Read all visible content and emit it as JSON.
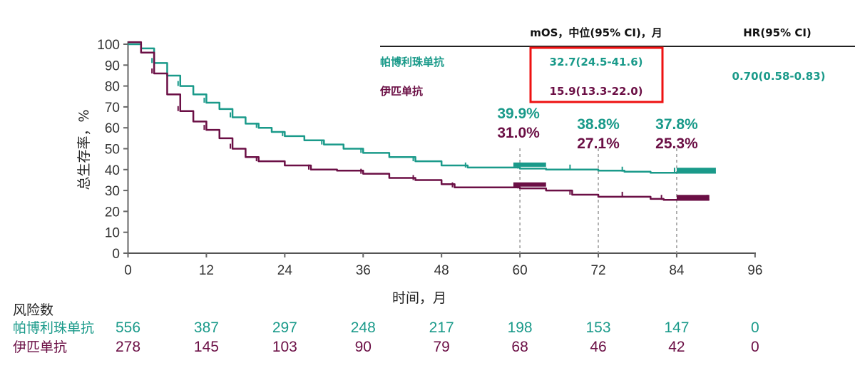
{
  "colors": {
    "pembrolizumab": "#1a9a8a",
    "ipilimumab": "#6b0f45",
    "highlight": "#ee1111",
    "axis": "#444444"
  },
  "chart_data": {
    "type": "line",
    "title": "",
    "xlabel": "时间，月",
    "ylabel": "总生存率，%",
    "xlim": [
      0,
      96
    ],
    "ylim": [
      0,
      100
    ],
    "xticks": [
      "0",
      "12",
      "24",
      "36",
      "48",
      "60",
      "72",
      "84",
      "96"
    ],
    "yticks": [
      "0",
      "10",
      "20",
      "30",
      "40",
      "50",
      "60",
      "70",
      "80",
      "90",
      "100"
    ],
    "grid": false,
    "series": [
      {
        "name": "帕博利珠单抗",
        "color_key": "pembrolizumab",
        "x": [
          0,
          2,
          4,
          6,
          8,
          10,
          12,
          14,
          16,
          18,
          20,
          22,
          24,
          27,
          30,
          33,
          36,
          40,
          44,
          48,
          52,
          56,
          60,
          64,
          68,
          72,
          76,
          80,
          84,
          90
        ],
        "y": [
          100,
          98,
          91,
          85,
          80,
          76,
          72,
          69,
          65,
          62,
          60,
          58,
          56,
          54,
          52,
          50,
          48,
          46,
          44,
          42,
          41,
          41,
          40.5,
          40,
          40,
          39.5,
          39,
          38.5,
          38.5,
          38.5
        ]
      },
      {
        "name": "伊匹单抗",
        "color_key": "ipilimumab",
        "x": [
          0,
          2,
          4,
          6,
          8,
          10,
          12,
          14,
          16,
          18,
          20,
          24,
          28,
          32,
          36,
          40,
          44,
          48,
          50,
          56,
          60,
          64,
          68,
          72,
          76,
          80,
          82,
          84,
          89
        ],
        "y": [
          101,
          96,
          86,
          76,
          68,
          63,
          59,
          55,
          50,
          46,
          44,
          42,
          40,
          39.5,
          38,
          36,
          35,
          33,
          31.5,
          31.5,
          31,
          30,
          28,
          27,
          27,
          26,
          25.5,
          25.5,
          25.5
        ]
      }
    ],
    "annotations": [
      {
        "x": 60,
        "pembrolizumab": "39.9%",
        "ipilimumab": "31.0%"
      },
      {
        "x": 72,
        "pembrolizumab": "38.8%",
        "ipilimumab": "27.1%"
      },
      {
        "x": 84,
        "pembrolizumab": "37.8%",
        "ipilimumab": "25.3%"
      }
    ]
  },
  "table": {
    "header_mos": "mOS，中位(95% CI)，月",
    "header_hr": "HR(95% CI)",
    "rows": [
      {
        "name": "帕博利珠单抗",
        "mos": "32.7(24.5-41.6)"
      },
      {
        "name": "伊匹单抗",
        "mos": "15.9(13.3-22.0)"
      }
    ],
    "hr": "0.70(0.58-0.83)"
  },
  "risk": {
    "title": "风险数",
    "rows": [
      {
        "name": "帕博利珠单抗",
        "values": [
          "556",
          "387",
          "297",
          "248",
          "217",
          "198",
          "153",
          "147",
          "0"
        ]
      },
      {
        "name": "伊匹单抗",
        "values": [
          "278",
          "145",
          "103",
          "90",
          "79",
          "68",
          "46",
          "42",
          "0"
        ]
      }
    ]
  }
}
